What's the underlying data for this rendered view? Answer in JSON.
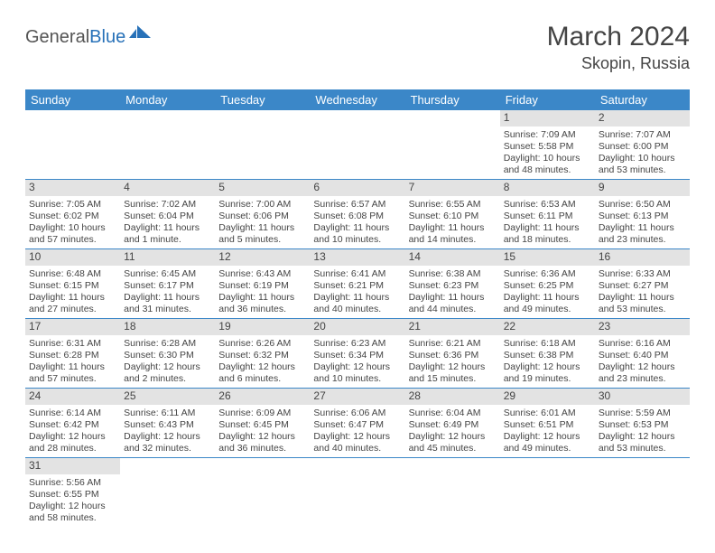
{
  "logo": {
    "text1": "General",
    "text2": "Blue"
  },
  "title": "March 2024",
  "location": "Skopin, Russia",
  "header_bg": "#3b87c8",
  "daynum_bg": "#e3e3e3",
  "border_color": "#3b87c8",
  "days_of_week": [
    "Sunday",
    "Monday",
    "Tuesday",
    "Wednesday",
    "Thursday",
    "Friday",
    "Saturday"
  ],
  "weeks": [
    [
      {
        "n": "",
        "sr": "",
        "ss": "",
        "dl1": "",
        "dl2": "",
        "empty": true
      },
      {
        "n": "",
        "sr": "",
        "ss": "",
        "dl1": "",
        "dl2": "",
        "empty": true
      },
      {
        "n": "",
        "sr": "",
        "ss": "",
        "dl1": "",
        "dl2": "",
        "empty": true
      },
      {
        "n": "",
        "sr": "",
        "ss": "",
        "dl1": "",
        "dl2": "",
        "empty": true
      },
      {
        "n": "",
        "sr": "",
        "ss": "",
        "dl1": "",
        "dl2": "",
        "empty": true
      },
      {
        "n": "1",
        "sr": "Sunrise: 7:09 AM",
        "ss": "Sunset: 5:58 PM",
        "dl1": "Daylight: 10 hours",
        "dl2": "and 48 minutes."
      },
      {
        "n": "2",
        "sr": "Sunrise: 7:07 AM",
        "ss": "Sunset: 6:00 PM",
        "dl1": "Daylight: 10 hours",
        "dl2": "and 53 minutes."
      }
    ],
    [
      {
        "n": "3",
        "sr": "Sunrise: 7:05 AM",
        "ss": "Sunset: 6:02 PM",
        "dl1": "Daylight: 10 hours",
        "dl2": "and 57 minutes."
      },
      {
        "n": "4",
        "sr": "Sunrise: 7:02 AM",
        "ss": "Sunset: 6:04 PM",
        "dl1": "Daylight: 11 hours",
        "dl2": "and 1 minute."
      },
      {
        "n": "5",
        "sr": "Sunrise: 7:00 AM",
        "ss": "Sunset: 6:06 PM",
        "dl1": "Daylight: 11 hours",
        "dl2": "and 5 minutes."
      },
      {
        "n": "6",
        "sr": "Sunrise: 6:57 AM",
        "ss": "Sunset: 6:08 PM",
        "dl1": "Daylight: 11 hours",
        "dl2": "and 10 minutes."
      },
      {
        "n": "7",
        "sr": "Sunrise: 6:55 AM",
        "ss": "Sunset: 6:10 PM",
        "dl1": "Daylight: 11 hours",
        "dl2": "and 14 minutes."
      },
      {
        "n": "8",
        "sr": "Sunrise: 6:53 AM",
        "ss": "Sunset: 6:11 PM",
        "dl1": "Daylight: 11 hours",
        "dl2": "and 18 minutes."
      },
      {
        "n": "9",
        "sr": "Sunrise: 6:50 AM",
        "ss": "Sunset: 6:13 PM",
        "dl1": "Daylight: 11 hours",
        "dl2": "and 23 minutes."
      }
    ],
    [
      {
        "n": "10",
        "sr": "Sunrise: 6:48 AM",
        "ss": "Sunset: 6:15 PM",
        "dl1": "Daylight: 11 hours",
        "dl2": "and 27 minutes."
      },
      {
        "n": "11",
        "sr": "Sunrise: 6:45 AM",
        "ss": "Sunset: 6:17 PM",
        "dl1": "Daylight: 11 hours",
        "dl2": "and 31 minutes."
      },
      {
        "n": "12",
        "sr": "Sunrise: 6:43 AM",
        "ss": "Sunset: 6:19 PM",
        "dl1": "Daylight: 11 hours",
        "dl2": "and 36 minutes."
      },
      {
        "n": "13",
        "sr": "Sunrise: 6:41 AM",
        "ss": "Sunset: 6:21 PM",
        "dl1": "Daylight: 11 hours",
        "dl2": "and 40 minutes."
      },
      {
        "n": "14",
        "sr": "Sunrise: 6:38 AM",
        "ss": "Sunset: 6:23 PM",
        "dl1": "Daylight: 11 hours",
        "dl2": "and 44 minutes."
      },
      {
        "n": "15",
        "sr": "Sunrise: 6:36 AM",
        "ss": "Sunset: 6:25 PM",
        "dl1": "Daylight: 11 hours",
        "dl2": "and 49 minutes."
      },
      {
        "n": "16",
        "sr": "Sunrise: 6:33 AM",
        "ss": "Sunset: 6:27 PM",
        "dl1": "Daylight: 11 hours",
        "dl2": "and 53 minutes."
      }
    ],
    [
      {
        "n": "17",
        "sr": "Sunrise: 6:31 AM",
        "ss": "Sunset: 6:28 PM",
        "dl1": "Daylight: 11 hours",
        "dl2": "and 57 minutes."
      },
      {
        "n": "18",
        "sr": "Sunrise: 6:28 AM",
        "ss": "Sunset: 6:30 PM",
        "dl1": "Daylight: 12 hours",
        "dl2": "and 2 minutes."
      },
      {
        "n": "19",
        "sr": "Sunrise: 6:26 AM",
        "ss": "Sunset: 6:32 PM",
        "dl1": "Daylight: 12 hours",
        "dl2": "and 6 minutes."
      },
      {
        "n": "20",
        "sr": "Sunrise: 6:23 AM",
        "ss": "Sunset: 6:34 PM",
        "dl1": "Daylight: 12 hours",
        "dl2": "and 10 minutes."
      },
      {
        "n": "21",
        "sr": "Sunrise: 6:21 AM",
        "ss": "Sunset: 6:36 PM",
        "dl1": "Daylight: 12 hours",
        "dl2": "and 15 minutes."
      },
      {
        "n": "22",
        "sr": "Sunrise: 6:18 AM",
        "ss": "Sunset: 6:38 PM",
        "dl1": "Daylight: 12 hours",
        "dl2": "and 19 minutes."
      },
      {
        "n": "23",
        "sr": "Sunrise: 6:16 AM",
        "ss": "Sunset: 6:40 PM",
        "dl1": "Daylight: 12 hours",
        "dl2": "and 23 minutes."
      }
    ],
    [
      {
        "n": "24",
        "sr": "Sunrise: 6:14 AM",
        "ss": "Sunset: 6:42 PM",
        "dl1": "Daylight: 12 hours",
        "dl2": "and 28 minutes."
      },
      {
        "n": "25",
        "sr": "Sunrise: 6:11 AM",
        "ss": "Sunset: 6:43 PM",
        "dl1": "Daylight: 12 hours",
        "dl2": "and 32 minutes."
      },
      {
        "n": "26",
        "sr": "Sunrise: 6:09 AM",
        "ss": "Sunset: 6:45 PM",
        "dl1": "Daylight: 12 hours",
        "dl2": "and 36 minutes."
      },
      {
        "n": "27",
        "sr": "Sunrise: 6:06 AM",
        "ss": "Sunset: 6:47 PM",
        "dl1": "Daylight: 12 hours",
        "dl2": "and 40 minutes."
      },
      {
        "n": "28",
        "sr": "Sunrise: 6:04 AM",
        "ss": "Sunset: 6:49 PM",
        "dl1": "Daylight: 12 hours",
        "dl2": "and 45 minutes."
      },
      {
        "n": "29",
        "sr": "Sunrise: 6:01 AM",
        "ss": "Sunset: 6:51 PM",
        "dl1": "Daylight: 12 hours",
        "dl2": "and 49 minutes."
      },
      {
        "n": "30",
        "sr": "Sunrise: 5:59 AM",
        "ss": "Sunset: 6:53 PM",
        "dl1": "Daylight: 12 hours",
        "dl2": "and 53 minutes."
      }
    ],
    [
      {
        "n": "31",
        "sr": "Sunrise: 5:56 AM",
        "ss": "Sunset: 6:55 PM",
        "dl1": "Daylight: 12 hours",
        "dl2": "and 58 minutes."
      },
      {
        "n": "",
        "sr": "",
        "ss": "",
        "dl1": "",
        "dl2": "",
        "empty": true
      },
      {
        "n": "",
        "sr": "",
        "ss": "",
        "dl1": "",
        "dl2": "",
        "empty": true
      },
      {
        "n": "",
        "sr": "",
        "ss": "",
        "dl1": "",
        "dl2": "",
        "empty": true
      },
      {
        "n": "",
        "sr": "",
        "ss": "",
        "dl1": "",
        "dl2": "",
        "empty": true
      },
      {
        "n": "",
        "sr": "",
        "ss": "",
        "dl1": "",
        "dl2": "",
        "empty": true
      },
      {
        "n": "",
        "sr": "",
        "ss": "",
        "dl1": "",
        "dl2": "",
        "empty": true
      }
    ]
  ]
}
